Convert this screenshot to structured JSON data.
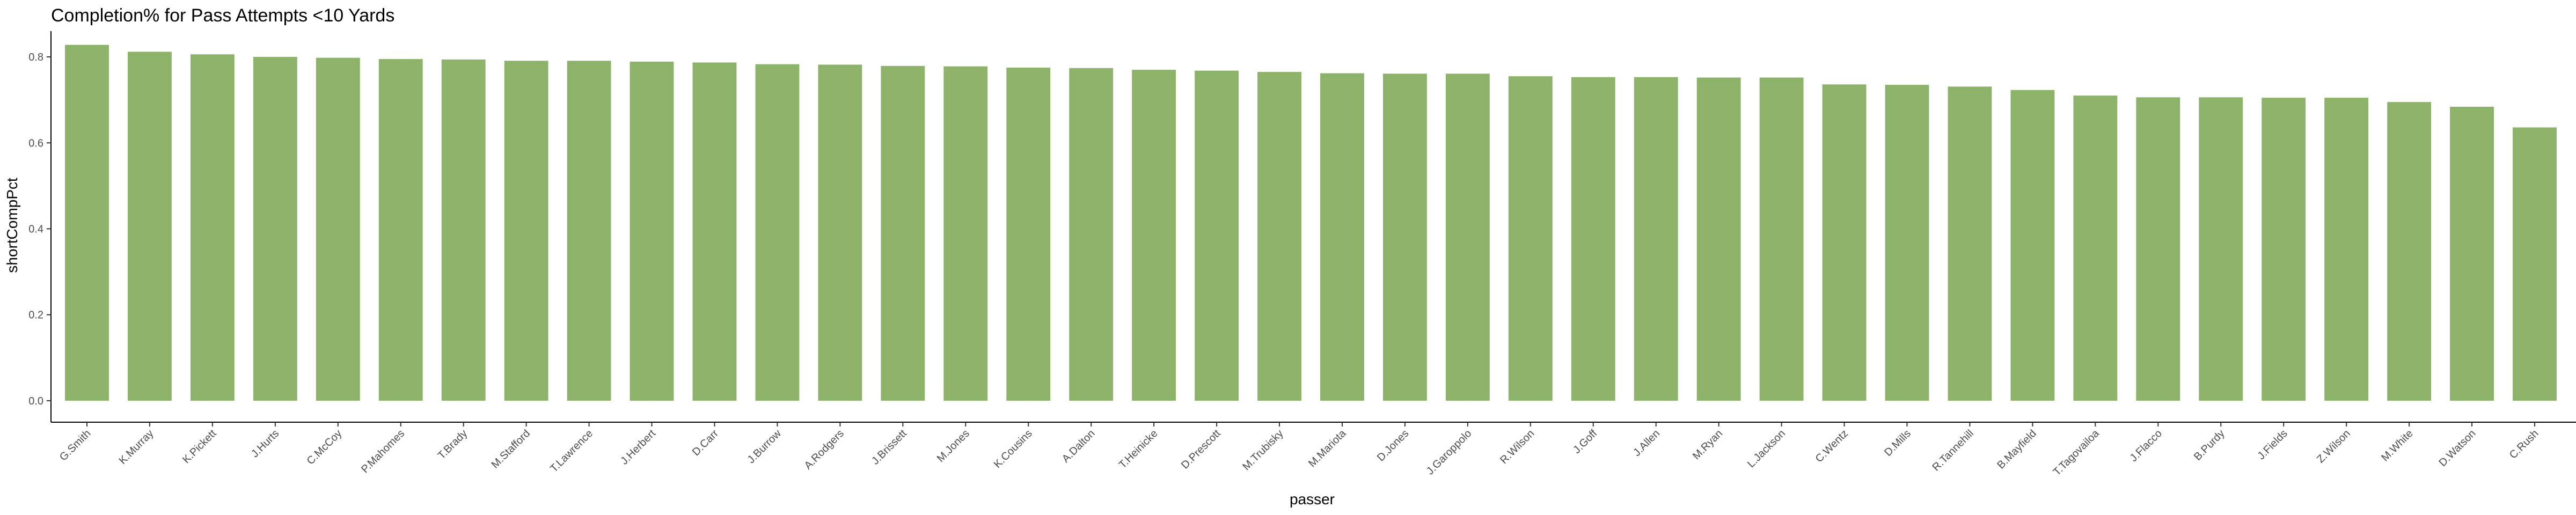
{
  "chart_data": {
    "type": "bar",
    "title": "Completion% for Pass Attempts <10 Yards",
    "xlabel": "passer",
    "ylabel": "shortCompPct",
    "ylim": [
      -0.05,
      0.86
    ],
    "yticks": [
      "0.0",
      "0.2",
      "0.4",
      "0.6",
      "0.8"
    ],
    "yticks_values": [
      0.0,
      0.2,
      0.4,
      0.6,
      0.8
    ],
    "bar_color": "#8db36a",
    "grid": false,
    "categories": [
      "G.Smith",
      "K.Murray",
      "K.Pickett",
      "J.Hurts",
      "C.McCoy",
      "P.Mahomes",
      "T.Brady",
      "M.Stafford",
      "T.Lawrence",
      "J.Herbert",
      "D.Carr",
      "J.Burrow",
      "A.Rodgers",
      "J.Brissett",
      "M.Jones",
      "K.Cousins",
      "A.Dalton",
      "T.Heinicke",
      "D.Prescott",
      "M.Trubisky",
      "M.Mariota",
      "D.Jones",
      "J.Garoppolo",
      "R.Wilson",
      "J.Goff",
      "J.Allen",
      "M.Ryan",
      "L.Jackson",
      "C.Wentz",
      "D.Mills",
      "R.Tannehill",
      "B.Mayfield",
      "T.Tagovailoa",
      "J.Flacco",
      "B.Purdy",
      "J.Fields",
      "Z.Wilson",
      "M.White",
      "D.Watson",
      "C.Rush"
    ],
    "values": [
      0.828,
      0.812,
      0.806,
      0.8,
      0.798,
      0.795,
      0.794,
      0.791,
      0.791,
      0.789,
      0.787,
      0.783,
      0.782,
      0.779,
      0.778,
      0.775,
      0.774,
      0.77,
      0.768,
      0.765,
      0.762,
      0.761,
      0.761,
      0.755,
      0.753,
      0.753,
      0.752,
      0.752,
      0.736,
      0.735,
      0.731,
      0.723,
      0.71,
      0.706,
      0.706,
      0.705,
      0.705,
      0.695,
      0.684,
      0.636
    ]
  }
}
